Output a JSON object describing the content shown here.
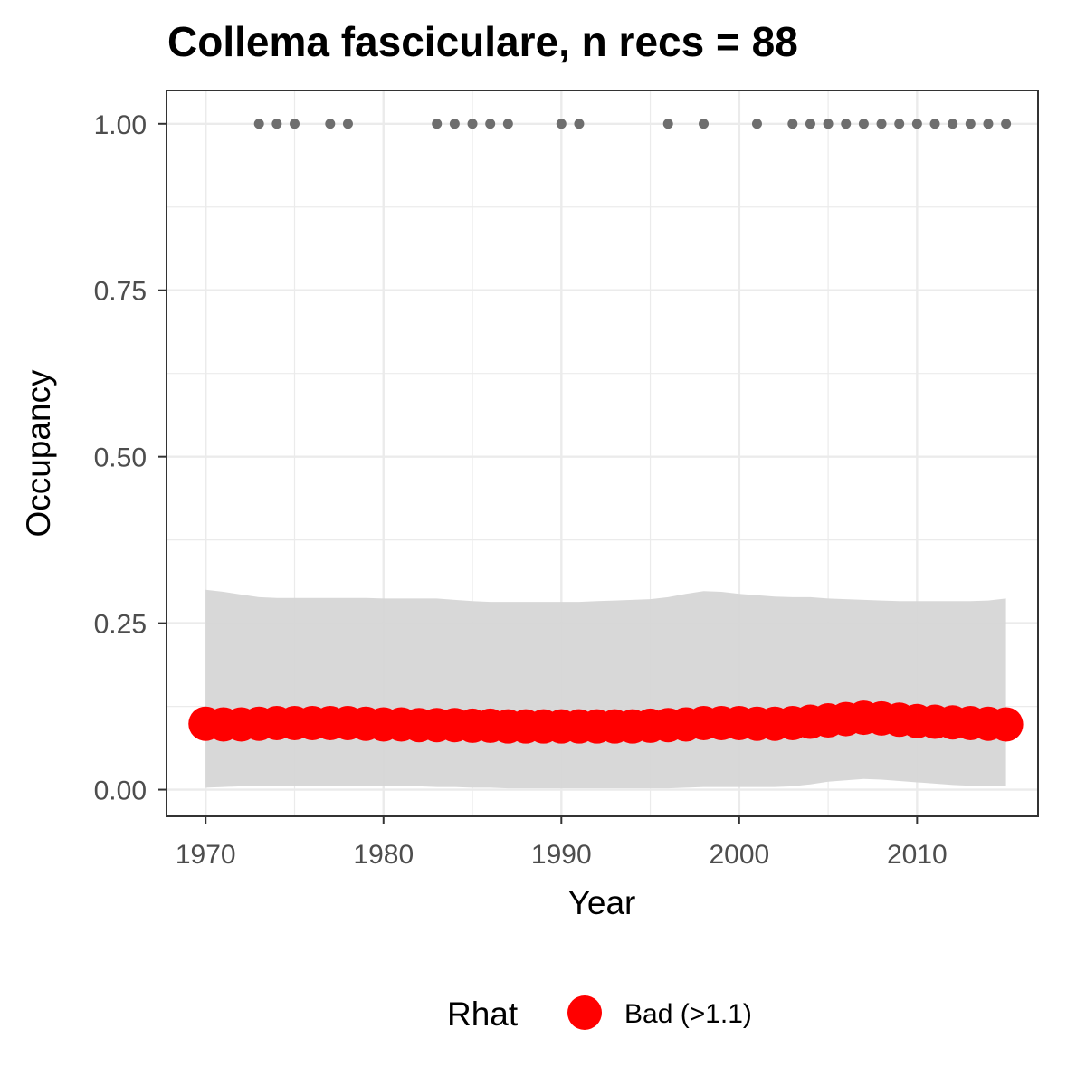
{
  "chart_data": {
    "type": "line",
    "title": "Collema fasciculare, n recs = 88",
    "xlabel": "Year",
    "ylabel": "Occupancy",
    "xlim": [
      1967.8,
      2016.8
    ],
    "ylim": [
      -0.04,
      1.05
    ],
    "x_ticks": [
      1970,
      1980,
      1990,
      2000,
      2010
    ],
    "x_tick_labels": [
      "1970",
      "1980",
      "1990",
      "2000",
      "2010"
    ],
    "y_ticks": [
      0,
      0.25,
      0.5,
      0.75,
      1.0
    ],
    "y_tick_labels": [
      "0.00",
      "0.25",
      "0.50",
      "0.75",
      "1.00"
    ],
    "grid": true,
    "colors": {
      "estimate": "#ff0000",
      "ribbon": "#d6d6d6",
      "observed": "#6e6e6e",
      "grid": "#ebebeb",
      "panel_border": "#333333"
    },
    "series": [
      {
        "kind": "ribbon",
        "x": [
          1970,
          1971,
          1972,
          1973,
          1974,
          1975,
          1976,
          1977,
          1978,
          1979,
          1980,
          1981,
          1982,
          1983,
          1984,
          1985,
          1986,
          1987,
          1988,
          1989,
          1990,
          1991,
          1992,
          1993,
          1994,
          1995,
          1996,
          1997,
          1998,
          1999,
          2000,
          2001,
          2002,
          2003,
          2004,
          2005,
          2006,
          2007,
          2008,
          2009,
          2010,
          2011,
          2012,
          2013,
          2014,
          2015
        ],
        "lower": [
          0.003,
          0.004,
          0.005,
          0.006,
          0.006,
          0.006,
          0.006,
          0.006,
          0.006,
          0.005,
          0.005,
          0.005,
          0.005,
          0.004,
          0.004,
          0.003,
          0.003,
          0.002,
          0.002,
          0.002,
          0.002,
          0.002,
          0.002,
          0.002,
          0.002,
          0.002,
          0.002,
          0.003,
          0.004,
          0.004,
          0.004,
          0.004,
          0.004,
          0.005,
          0.008,
          0.012,
          0.014,
          0.016,
          0.015,
          0.013,
          0.011,
          0.009,
          0.007,
          0.006,
          0.005,
          0.005
        ],
        "upper": [
          0.3,
          0.297,
          0.293,
          0.289,
          0.288,
          0.288,
          0.288,
          0.288,
          0.288,
          0.288,
          0.287,
          0.287,
          0.287,
          0.287,
          0.285,
          0.283,
          0.282,
          0.282,
          0.282,
          0.282,
          0.282,
          0.282,
          0.283,
          0.284,
          0.285,
          0.286,
          0.289,
          0.294,
          0.298,
          0.297,
          0.294,
          0.292,
          0.29,
          0.289,
          0.289,
          0.287,
          0.286,
          0.285,
          0.284,
          0.283,
          0.283,
          0.283,
          0.283,
          0.283,
          0.284,
          0.287
        ]
      },
      {
        "kind": "points",
        "legend_group": "Rhat",
        "x": [
          1970,
          1971,
          1972,
          1973,
          1974,
          1975,
          1976,
          1977,
          1978,
          1979,
          1980,
          1981,
          1982,
          1983,
          1984,
          1985,
          1986,
          1987,
          1988,
          1989,
          1990,
          1991,
          1992,
          1993,
          1994,
          1995,
          1996,
          1997,
          1998,
          1999,
          2000,
          2001,
          2002,
          2003,
          2004,
          2005,
          2006,
          2007,
          2008,
          2009,
          2010,
          2011,
          2012,
          2013,
          2014,
          2015
        ],
        "y": [
          0.099,
          0.098,
          0.098,
          0.099,
          0.1,
          0.1,
          0.1,
          0.1,
          0.1,
          0.099,
          0.098,
          0.098,
          0.097,
          0.097,
          0.097,
          0.096,
          0.096,
          0.095,
          0.095,
          0.095,
          0.095,
          0.095,
          0.095,
          0.095,
          0.095,
          0.096,
          0.097,
          0.098,
          0.1,
          0.1,
          0.1,
          0.099,
          0.099,
          0.1,
          0.102,
          0.104,
          0.106,
          0.108,
          0.107,
          0.105,
          0.103,
          0.102,
          0.101,
          0.1,
          0.099,
          0.098
        ]
      },
      {
        "kind": "observed",
        "x": [
          1973,
          1974,
          1975,
          1977,
          1978,
          1983,
          1984,
          1985,
          1986,
          1987,
          1990,
          1991,
          1996,
          1998,
          2001,
          2003,
          2004,
          2005,
          2006,
          2007,
          2008,
          2009,
          2010,
          2011,
          2012,
          2013,
          2014,
          2015
        ],
        "y": [
          1,
          1,
          1,
          1,
          1,
          1,
          1,
          1,
          1,
          1,
          1,
          1,
          1,
          1,
          1,
          1,
          1,
          1,
          1,
          1,
          1,
          1,
          1,
          1,
          1,
          1,
          1,
          1
        ]
      }
    ],
    "legend": {
      "title": "Rhat",
      "position": "bottom",
      "entries": [
        {
          "label": "Bad (>1.1)",
          "color": "#ff0000"
        }
      ]
    }
  }
}
